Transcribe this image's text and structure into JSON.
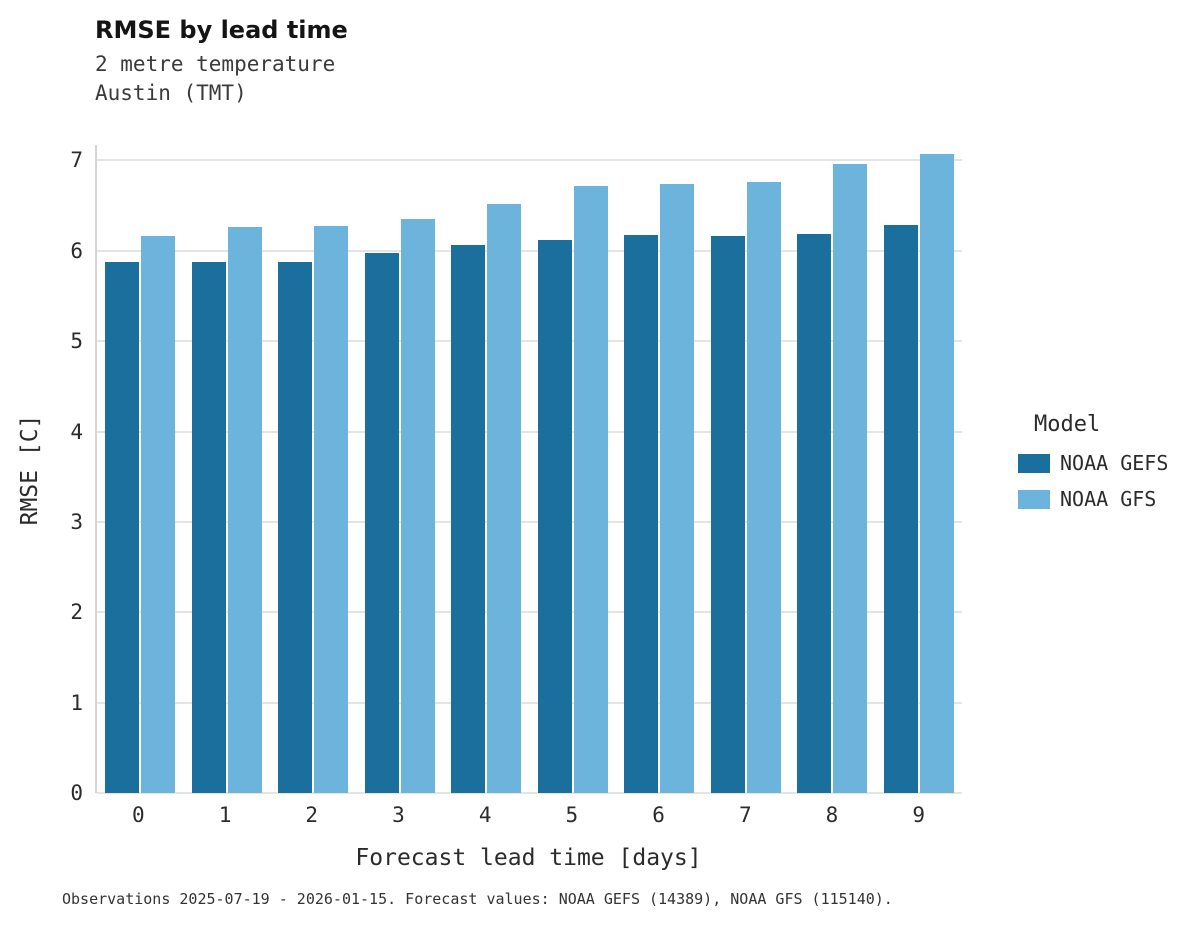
{
  "header": {
    "title": "RMSE by lead time",
    "subtitle1": "2 metre temperature",
    "subtitle2": "Austin (TMT)"
  },
  "footer": {
    "caption": "Observations 2025-07-19 - 2026-01-15. Forecast values: NOAA GEFS (14389), NOAA GFS (115140)."
  },
  "chart_data": {
    "type": "bar",
    "title": "RMSE by lead time",
    "subtitle": [
      "2 metre temperature",
      "Austin (TMT)"
    ],
    "categories": [
      "0",
      "1",
      "2",
      "3",
      "4",
      "5",
      "6",
      "7",
      "8",
      "9"
    ],
    "series": [
      {
        "name": "NOAA GEFS",
        "color": "#1b6f9c",
        "values": [
          5.88,
          5.88,
          5.88,
          5.97,
          6.06,
          6.12,
          6.17,
          6.16,
          6.19,
          6.28
        ]
      },
      {
        "name": "NOAA GFS",
        "color": "#6db4dc",
        "values": [
          6.16,
          6.26,
          6.27,
          6.35,
          6.52,
          6.72,
          6.74,
          6.76,
          6.96,
          7.07
        ]
      }
    ],
    "xlabel": "Forecast lead time [days]",
    "ylabel": "RMSE [C]",
    "ylim": [
      0,
      7
    ],
    "yticks": [
      0,
      1,
      2,
      3,
      4,
      5,
      6,
      7
    ],
    "grid": "horizontal",
    "legend": {
      "title": "Model",
      "position": "right"
    }
  }
}
